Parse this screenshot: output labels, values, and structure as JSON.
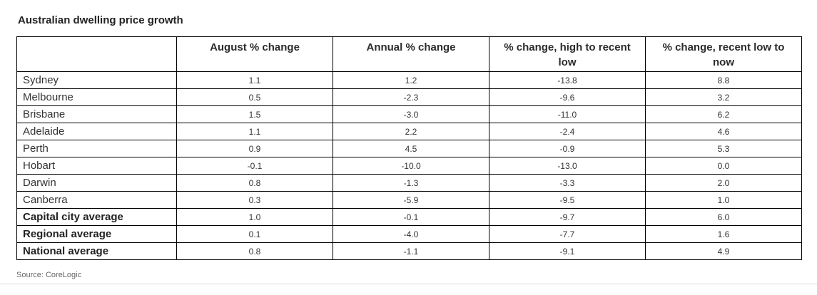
{
  "title": "Australian dwelling price growth",
  "source": "Source: CoreLogic",
  "table": {
    "columns": [
      "",
      "August % change",
      "Annual % change",
      "% change, high to recent low",
      "% change, recent low to now"
    ],
    "rows": [
      {
        "label": "Sydney",
        "bold": false,
        "values": [
          "1.1",
          "1.2",
          "-13.8",
          "8.8"
        ]
      },
      {
        "label": "Melbourne",
        "bold": false,
        "values": [
          "0.5",
          "-2.3",
          "-9.6",
          "3.2"
        ]
      },
      {
        "label": "Brisbane",
        "bold": false,
        "values": [
          "1.5",
          "-3.0",
          "-11.0",
          "6.2"
        ]
      },
      {
        "label": "Adelaide",
        "bold": false,
        "values": [
          "1.1",
          "2.2",
          "-2.4",
          "4.6"
        ]
      },
      {
        "label": "Perth",
        "bold": false,
        "values": [
          "0.9",
          "4.5",
          "-0.9",
          "5.3"
        ]
      },
      {
        "label": "Hobart",
        "bold": false,
        "values": [
          "-0.1",
          "-10.0",
          "-13.0",
          "0.0"
        ]
      },
      {
        "label": "Darwin",
        "bold": false,
        "values": [
          "0.8",
          "-1.3",
          "-3.3",
          "2.0"
        ]
      },
      {
        "label": "Canberra",
        "bold": false,
        "values": [
          "0.3",
          "-5.9",
          "-9.5",
          "1.0"
        ]
      },
      {
        "label": "Capital city average",
        "bold": true,
        "values": [
          "1.0",
          "-0.1",
          "-9.7",
          "6.0"
        ]
      },
      {
        "label": "Regional average",
        "bold": true,
        "values": [
          "0.1",
          "-4.0",
          "-7.7",
          "1.6"
        ]
      },
      {
        "label": "National average",
        "bold": true,
        "values": [
          "0.8",
          "-1.1",
          "-9.1",
          "4.9"
        ]
      }
    ]
  },
  "chart_data": {
    "type": "table",
    "title": "Australian dwelling price growth",
    "source": "Source: CoreLogic",
    "columns": [
      "August % change",
      "Annual % change",
      "% change, high to recent low",
      "% change, recent low to now"
    ],
    "categories": [
      "Sydney",
      "Melbourne",
      "Brisbane",
      "Adelaide",
      "Perth",
      "Hobart",
      "Darwin",
      "Canberra",
      "Capital city average",
      "Regional average",
      "National average"
    ],
    "series": [
      {
        "name": "August % change",
        "values": [
          1.1,
          0.5,
          1.5,
          1.1,
          0.9,
          -0.1,
          0.8,
          0.3,
          1.0,
          0.1,
          0.8
        ]
      },
      {
        "name": "Annual % change",
        "values": [
          1.2,
          -2.3,
          -3.0,
          2.2,
          4.5,
          -10.0,
          -1.3,
          -5.9,
          -0.1,
          -4.0,
          -1.1
        ]
      },
      {
        "name": "% change, high to recent low",
        "values": [
          -13.8,
          -9.6,
          -11.0,
          -2.4,
          -0.9,
          -13.0,
          -3.3,
          -9.5,
          -9.7,
          -7.7,
          -9.1
        ]
      },
      {
        "name": "% change, recent low to now",
        "values": [
          8.8,
          3.2,
          6.2,
          4.6,
          5.3,
          0.0,
          2.0,
          1.0,
          6.0,
          1.6,
          4.9
        ]
      }
    ]
  }
}
